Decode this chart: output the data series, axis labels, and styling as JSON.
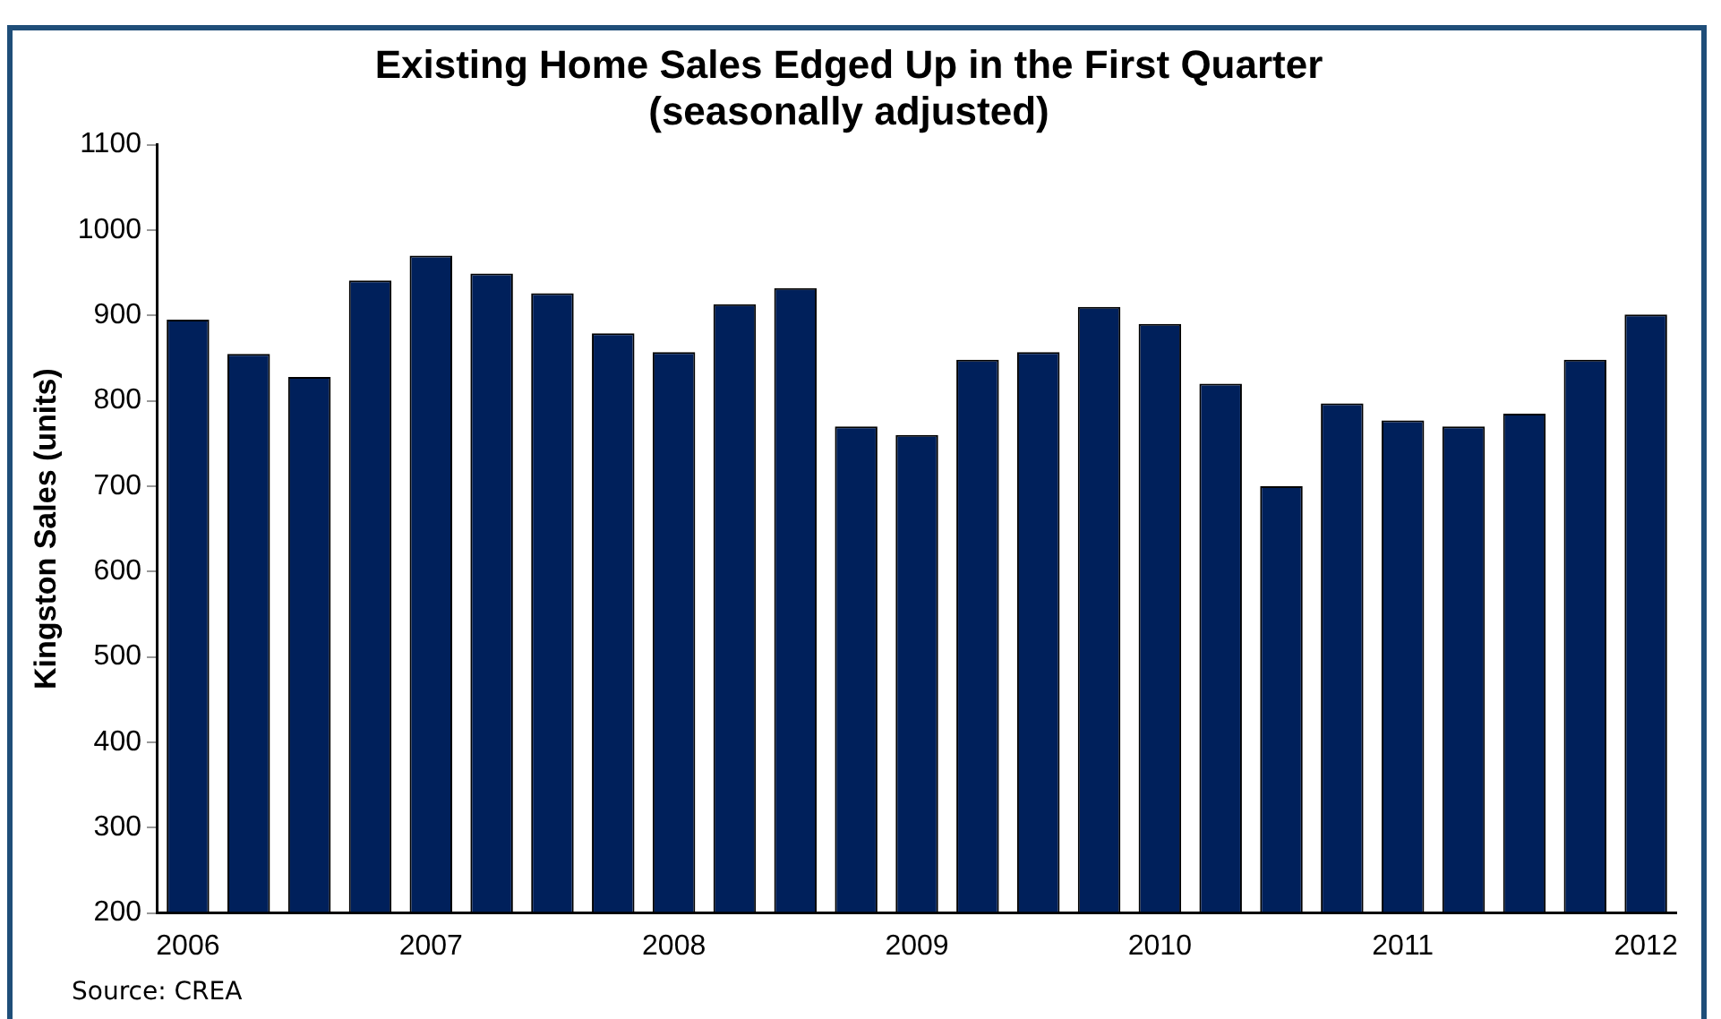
{
  "chart_data": {
    "type": "bar",
    "title": "Existing Home Sales Edged Up in the First Quarter",
    "subtitle": "(seasonally adjusted)",
    "ylabel": "Kingston Sales (units)",
    "categories": [
      "2006",
      null,
      null,
      null,
      "2007",
      null,
      null,
      null,
      "2008",
      null,
      null,
      null,
      "2009",
      null,
      null,
      null,
      "2010",
      null,
      null,
      null,
      "2011",
      null,
      null,
      null,
      "2012"
    ],
    "values": [
      895,
      855,
      828,
      941,
      970,
      949,
      926,
      879,
      857,
      913,
      932,
      770,
      760,
      848,
      857,
      910,
      890,
      820,
      700,
      797,
      777,
      770,
      785,
      848,
      901
    ],
    "color": "#00205b",
    "ylim": [
      200,
      1100
    ],
    "yticks": [
      200,
      300,
      400,
      500,
      600,
      700,
      800,
      900,
      1000,
      1100
    ],
    "grid": false,
    "legend": false,
    "annotations": [
      "Source: CREA"
    ]
  }
}
